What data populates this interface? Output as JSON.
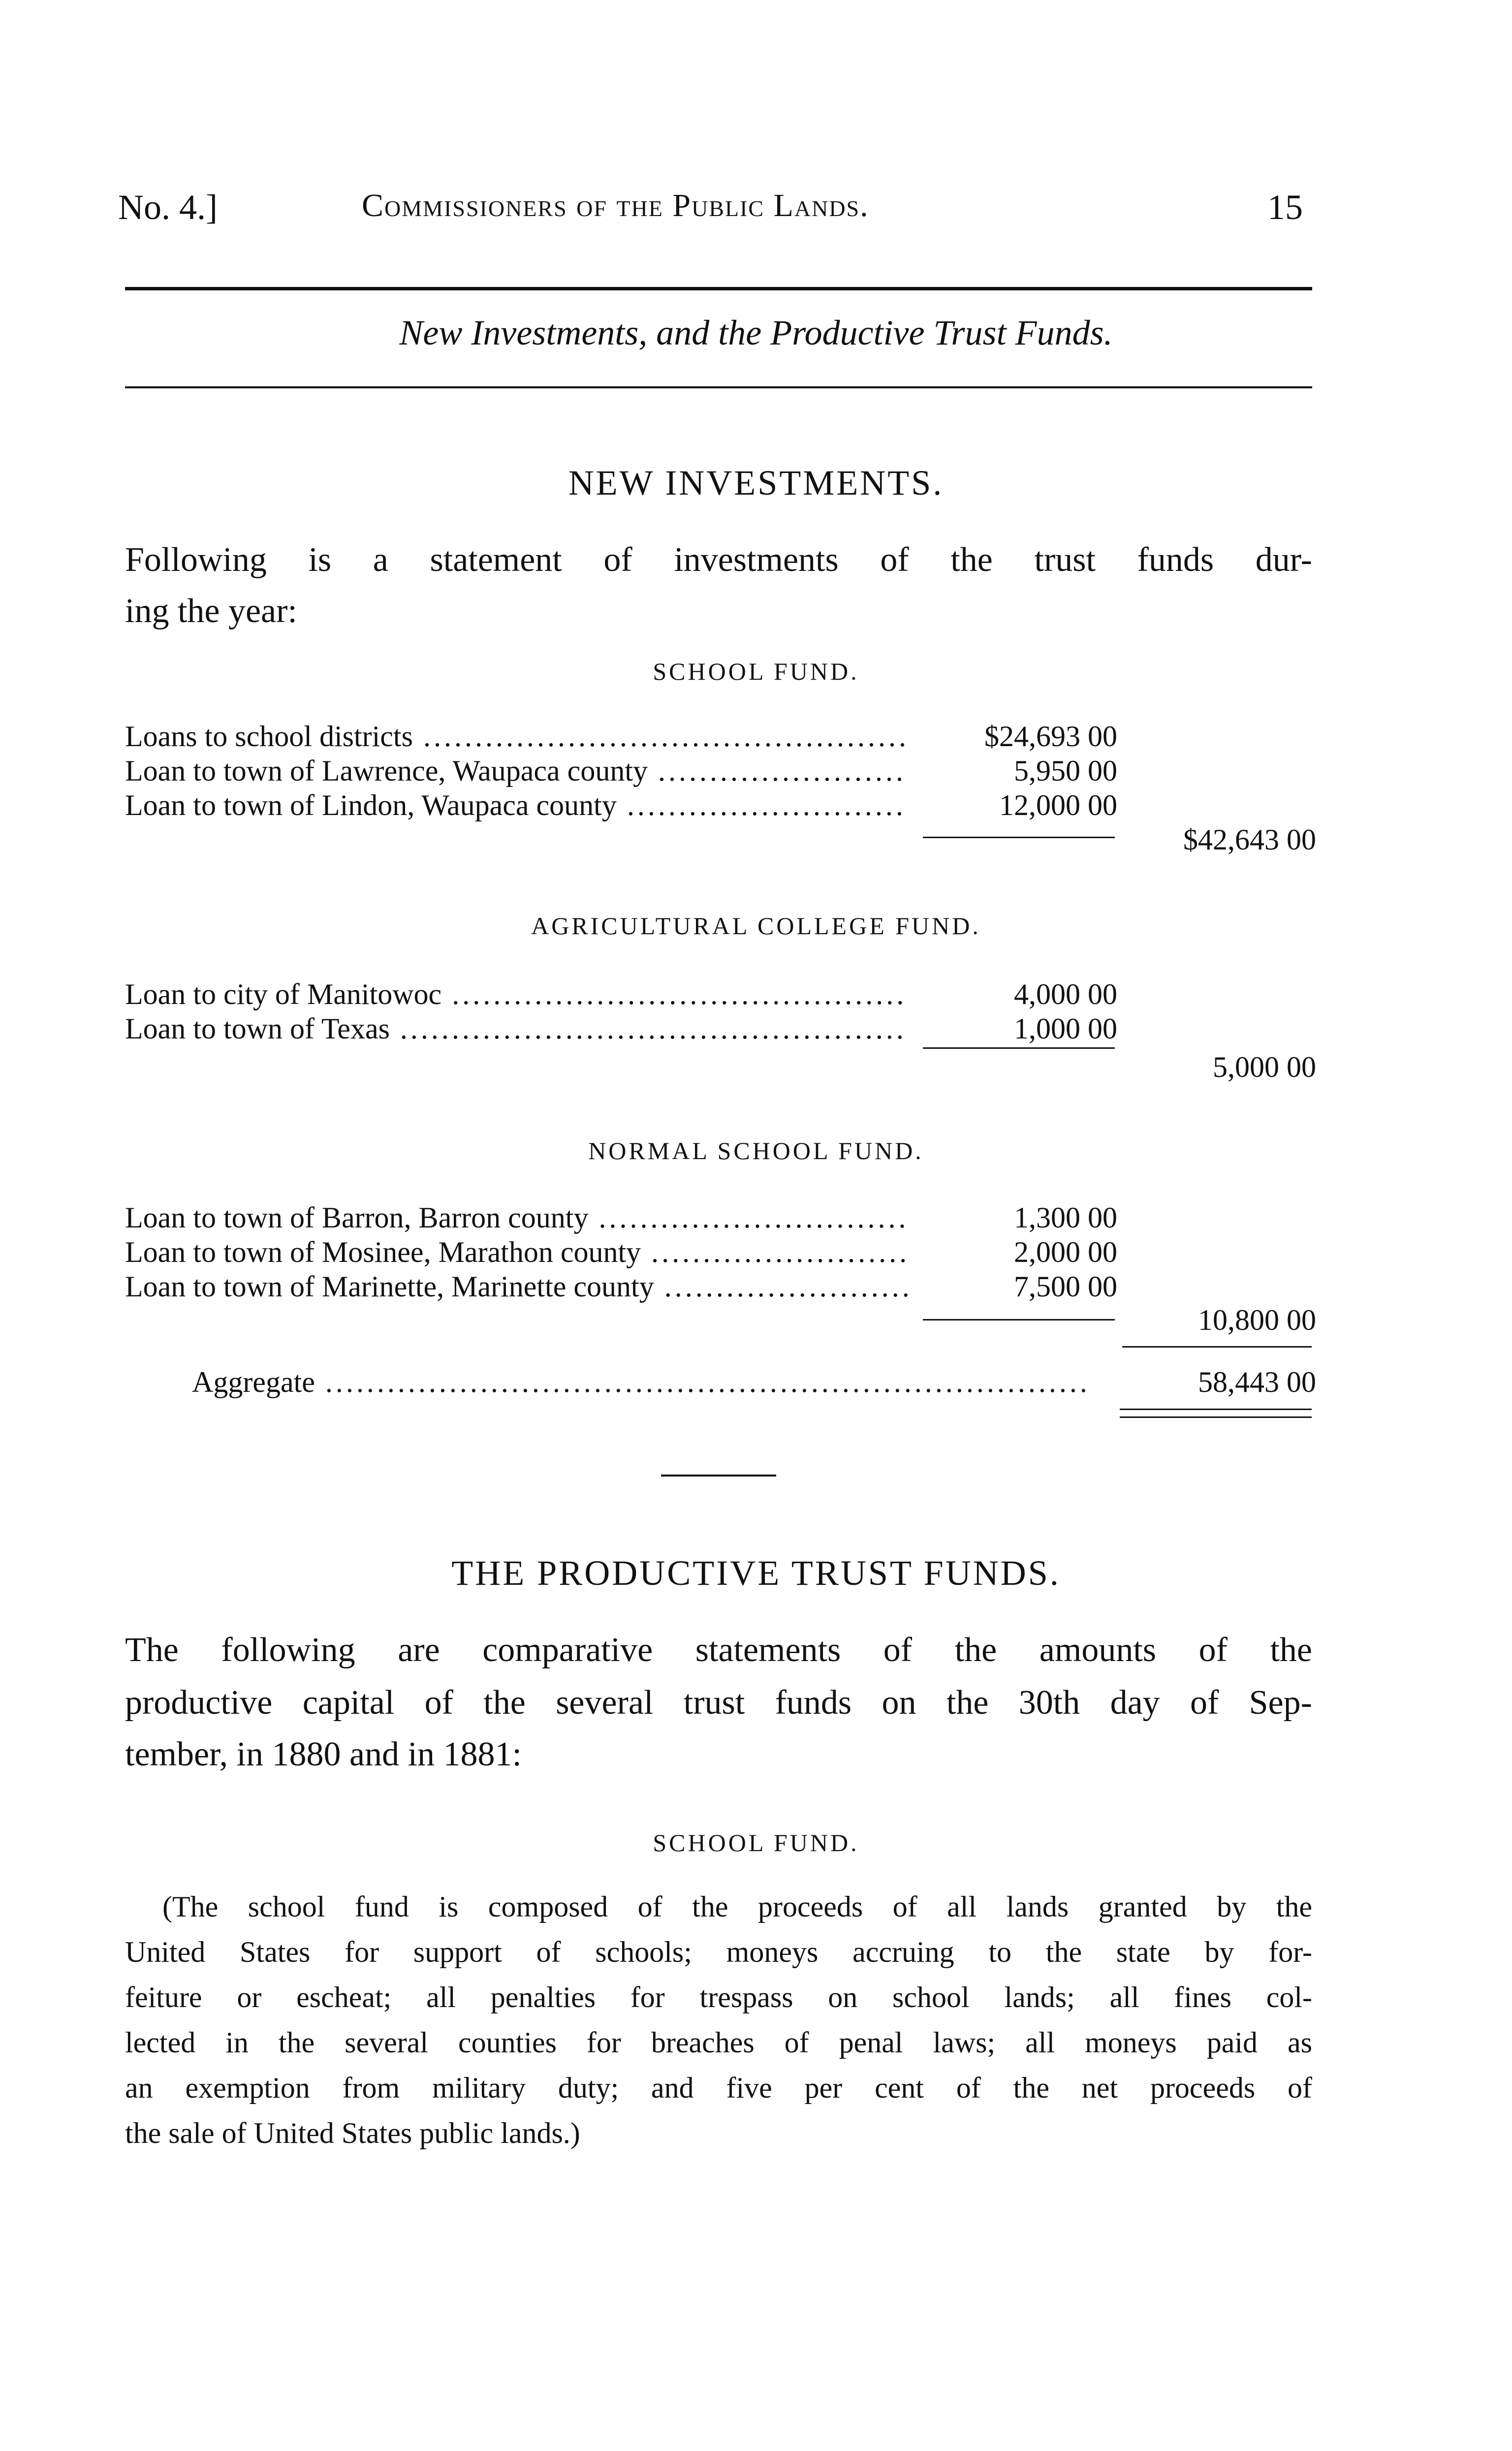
{
  "header": {
    "number": "No. 4.]",
    "title": "Commissioners of the Public Lands.",
    "page": "15"
  },
  "subtitle": "New Investments, and the Productive Trust Funds.",
  "new_investments": {
    "heading": "NEW INVESTMENTS.",
    "intro_lines": [
      "Following is a statement of investments of the trust funds dur-",
      "ing the year:"
    ],
    "funds": [
      {
        "name": "SCHOOL FUND.",
        "rows": [
          {
            "label": "Loans to school districts",
            "amount": "$24,693 00"
          },
          {
            "label": "Loan to town of Lawrence, Waupaca county",
            "amount": "5,950 00"
          },
          {
            "label": "Loan to town of Lindon, Waupaca county",
            "amount": "12,000 00"
          }
        ],
        "total": "$42,643 00"
      },
      {
        "name": "AGRICULTURAL COLLEGE FUND.",
        "rows": [
          {
            "label": "Loan to city of Manitowoc",
            "amount": "4,000 00"
          },
          {
            "label": "Loan to town of Texas",
            "amount": "1,000 00"
          }
        ],
        "total": "5,000 00"
      },
      {
        "name": "NORMAL SCHOOL FUND.",
        "rows": [
          {
            "label": "Loan to town of Barron, Barron county",
            "amount": "1,300 00"
          },
          {
            "label": "Loan to town of Mosinee, Marathon county",
            "amount": "2,000 00"
          },
          {
            "label": "Loan to town of Marinette, Marinette county",
            "amount": "7,500 00"
          }
        ],
        "total": "10,800 00"
      }
    ],
    "aggregate_label": "Aggregate",
    "aggregate_value": "58,443 00"
  },
  "productive": {
    "heading": "THE PRODUCTIVE TRUST FUNDS.",
    "intro_lines": [
      "The following are comparative statements of the amounts of the",
      "productive capital of the several trust funds on the 30th day of Sep-",
      "tember, in 1880 and in 1881:"
    ],
    "school_fund_heading": "SCHOOL FUND.",
    "note_lines": [
      "(The school fund is composed of the proceeds of all lands granted by the",
      "United States for support of schools; moneys accruing to the state by for-",
      "feiture or escheat; all penalties for trespass on school lands; all fines col-",
      "lected in the several counties for breaches of penal laws; all moneys paid as",
      "an exemption from military duty; and five per cent of the net proceeds of",
      "the sale of United States public lands.)"
    ]
  }
}
